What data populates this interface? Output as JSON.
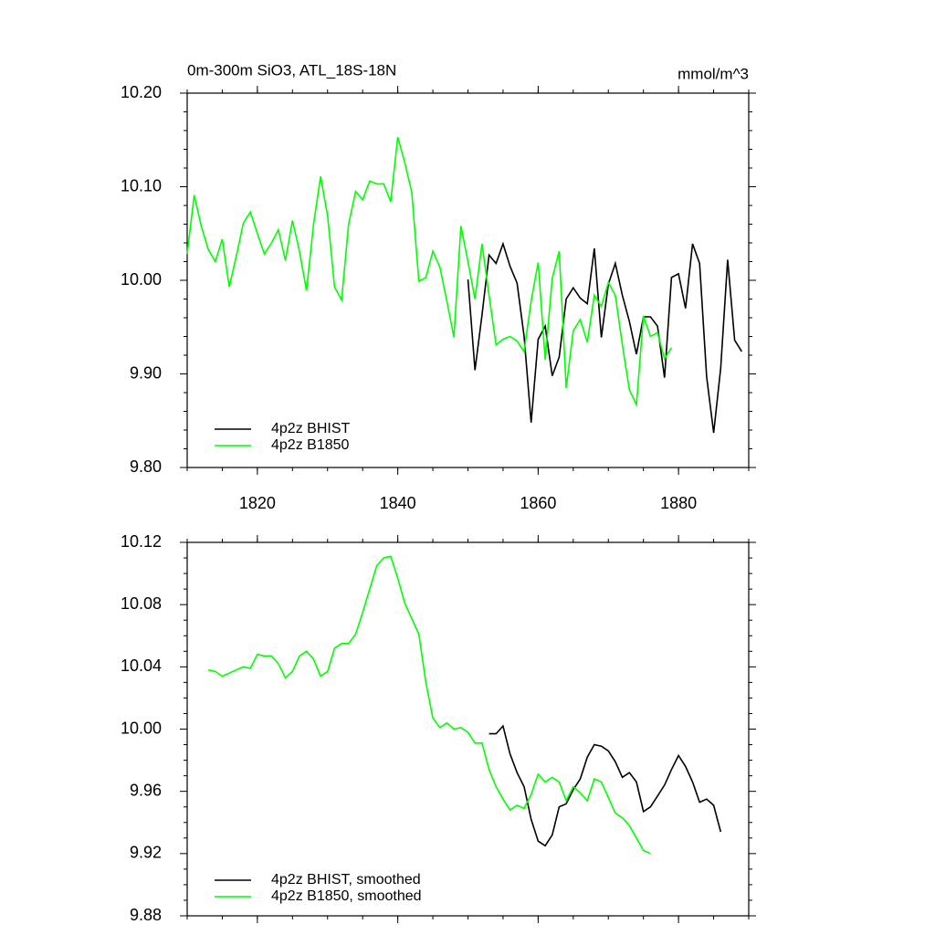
{
  "chart_data": [
    {
      "type": "line",
      "title": "0m-300m SiO3, ATL_18S-18N",
      "units": "mmol/m^3",
      "xlim": [
        1810,
        1890
      ],
      "xticks": [
        1820,
        1840,
        1860,
        1880
      ],
      "xtick_labels": true,
      "ylim": [
        9.8,
        10.2
      ],
      "yticks": [
        {
          "value": 9.8,
          "label": "9.80"
        },
        {
          "value": 9.9,
          "label": "9.90"
        },
        {
          "value": 10.0,
          "label": "10.00"
        },
        {
          "value": 10.1,
          "label": "10.10"
        },
        {
          "value": 10.2,
          "label": "10.20"
        }
      ],
      "legend": "lower left",
      "series": [
        {
          "name": "4p2z BHIST",
          "color": "#000000",
          "x": [
            1850,
            1851,
            1852,
            1853,
            1854,
            1855,
            1856,
            1857,
            1858,
            1859,
            1860,
            1861,
            1862,
            1863,
            1864,
            1865,
            1866,
            1867,
            1868,
            1869,
            1870,
            1871,
            1872,
            1873,
            1874,
            1875,
            1876,
            1877,
            1878,
            1879,
            1880,
            1881,
            1882,
            1883,
            1884,
            1885,
            1886,
            1887,
            1888,
            1889
          ],
          "values": [
            10.001,
            9.904,
            9.963,
            10.027,
            10.018,
            10.039,
            10.015,
            9.997,
            9.94,
            9.848,
            9.937,
            9.951,
            9.898,
            9.918,
            9.98,
            9.992,
            9.981,
            9.975,
            10.034,
            9.939,
            9.996,
            10.018,
            9.984,
            9.956,
            9.921,
            9.961,
            9.961,
            9.951,
            9.896,
            10.003,
            10.007,
            9.97,
            10.039,
            10.018,
            9.897,
            9.837,
            9.906,
            10.022,
            9.936,
            9.924
          ]
        },
        {
          "name": "4p2z B1850",
          "color": "#00ff00",
          "x": [
            1810,
            1811,
            1812,
            1813,
            1814,
            1815,
            1816,
            1817,
            1818,
            1819,
            1820,
            1821,
            1822,
            1823,
            1824,
            1825,
            1826,
            1827,
            1828,
            1829,
            1830,
            1831,
            1832,
            1833,
            1834,
            1835,
            1836,
            1837,
            1838,
            1839,
            1840,
            1841,
            1842,
            1843,
            1844,
            1845,
            1846,
            1847,
            1848,
            1849,
            1850,
            1851,
            1852,
            1853,
            1854,
            1855,
            1856,
            1857,
            1858,
            1859,
            1860,
            1861,
            1862,
            1863,
            1864,
            1865,
            1866,
            1867,
            1868,
            1869,
            1870,
            1871,
            1872,
            1873,
            1874,
            1875,
            1876,
            1877,
            1878,
            1879
          ],
          "values": [
            10.028,
            10.091,
            10.058,
            10.033,
            10.02,
            10.044,
            9.993,
            10.026,
            10.061,
            10.073,
            10.05,
            10.028,
            10.04,
            10.054,
            10.021,
            10.064,
            10.031,
            9.989,
            10.06,
            10.111,
            10.069,
            9.993,
            9.979,
            10.06,
            10.095,
            10.086,
            10.106,
            10.103,
            10.103,
            10.084,
            10.153,
            10.126,
            10.094,
            9.999,
            10.003,
            10.031,
            10.014,
            9.978,
            9.939,
            10.058,
            10.02,
            9.98,
            10.039,
            9.984,
            9.931,
            9.937,
            9.94,
            9.935,
            9.924,
            9.978,
            10.019,
            9.915,
            10.002,
            10.031,
            9.885,
            9.946,
            9.958,
            9.934,
            9.984,
            9.972,
            9.998,
            9.984,
            9.931,
            9.883,
            9.867,
            9.962,
            9.94,
            9.944,
            9.916,
            9.928
          ]
        }
      ]
    },
    {
      "type": "line",
      "xlim": [
        1810,
        1890
      ],
      "xticks": [
        1820,
        1840,
        1860,
        1880
      ],
      "xtick_labels": false,
      "ylim": [
        9.88,
        10.12
      ],
      "yticks": [
        {
          "value": 9.88,
          "label": "9.88"
        },
        {
          "value": 9.92,
          "label": "9.92"
        },
        {
          "value": 9.96,
          "label": "9.96"
        },
        {
          "value": 10.0,
          "label": "10.00"
        },
        {
          "value": 10.04,
          "label": "10.04"
        },
        {
          "value": 10.08,
          "label": "10.08"
        },
        {
          "value": 10.12,
          "label": "10.12"
        }
      ],
      "legend": "lower left",
      "series": [
        {
          "name": "4p2z BHIST, smoothed",
          "color": "#000000",
          "x": [
            1853,
            1854,
            1855,
            1856,
            1857,
            1858,
            1859,
            1860,
            1861,
            1862,
            1863,
            1864,
            1865,
            1866,
            1867,
            1868,
            1869,
            1870,
            1871,
            1872,
            1873,
            1874,
            1875,
            1876,
            1877,
            1878,
            1879,
            1880,
            1881,
            1882,
            1883,
            1884,
            1885,
            1886
          ],
          "values": [
            9.997,
            9.997,
            10.002,
            9.984,
            9.972,
            9.963,
            9.942,
            9.928,
            9.925,
            9.932,
            9.95,
            9.952,
            9.961,
            9.968,
            9.982,
            9.99,
            9.989,
            9.986,
            9.979,
            9.969,
            9.972,
            9.966,
            9.947,
            9.95,
            9.957,
            9.964,
            9.974,
            9.983,
            9.976,
            9.966,
            9.953,
            9.955,
            9.951,
            9.934
          ]
        },
        {
          "name": "4p2z B1850, smoothed",
          "color": "#00ff00",
          "x": [
            1813,
            1814,
            1815,
            1816,
            1817,
            1818,
            1819,
            1820,
            1821,
            1822,
            1823,
            1824,
            1825,
            1826,
            1827,
            1828,
            1829,
            1830,
            1831,
            1832,
            1833,
            1834,
            1835,
            1836,
            1837,
            1838,
            1839,
            1840,
            1841,
            1842,
            1843,
            1844,
            1845,
            1846,
            1847,
            1848,
            1849,
            1850,
            1851,
            1852,
            1853,
            1854,
            1855,
            1856,
            1857,
            1858,
            1859,
            1860,
            1861,
            1862,
            1863,
            1864,
            1865,
            1866,
            1867,
            1868,
            1869,
            1870,
            1871,
            1872,
            1873,
            1874,
            1875,
            1876
          ],
          "values": [
            10.038,
            10.037,
            10.034,
            10.036,
            10.038,
            10.04,
            10.039,
            10.048,
            10.047,
            10.047,
            10.042,
            10.033,
            10.037,
            10.047,
            10.05,
            10.045,
            10.034,
            10.037,
            10.052,
            10.055,
            10.055,
            10.061,
            10.075,
            10.09,
            10.105,
            10.11,
            10.111,
            10.097,
            10.081,
            10.071,
            10.061,
            10.03,
            10.007,
            10.001,
            10.004,
            10.0,
            10.001,
            9.998,
            9.991,
            9.991,
            9.974,
            9.963,
            9.955,
            9.948,
            9.951,
            9.949,
            9.958,
            9.971,
            9.966,
            9.969,
            9.966,
            9.954,
            9.963,
            9.959,
            9.954,
            9.968,
            9.966,
            9.956,
            9.946,
            9.943,
            9.938,
            9.93,
            9.922,
            9.92
          ]
        }
      ]
    }
  ]
}
